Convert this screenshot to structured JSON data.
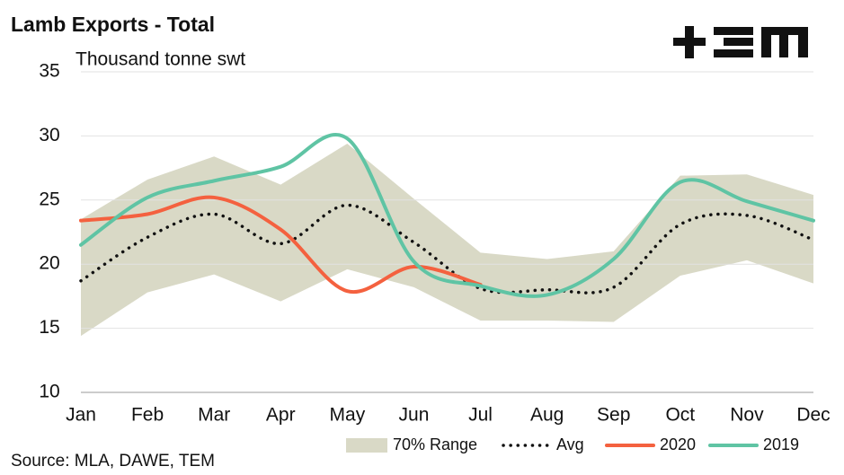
{
  "chart_data": {
    "type": "line",
    "title": "Lamb Exports - Total",
    "y_label": "Thousand tonne swt",
    "source": "Source: MLA, DAWE, TEM",
    "categories": [
      "Jan",
      "Feb",
      "Mar",
      "Apr",
      "May",
      "Jun",
      "Jul",
      "Aug",
      "Sep",
      "Oct",
      "Nov",
      "Dec"
    ],
    "ylim": [
      10,
      35
    ],
    "yticks": [
      10,
      15,
      20,
      25,
      30,
      35
    ],
    "grid": true,
    "range": {
      "name": "70% Range",
      "color": "#d9d9c6",
      "upper": [
        23.5,
        26.6,
        28.4,
        26.2,
        29.4,
        25.1,
        20.9,
        20.4,
        21.0,
        26.9,
        27.0,
        25.4
      ],
      "lower": [
        14.4,
        17.8,
        19.2,
        17.1,
        19.6,
        18.2,
        15.6,
        15.6,
        15.5,
        19.1,
        20.3,
        18.5
      ]
    },
    "series": [
      {
        "name": "Avg",
        "color": "#111111",
        "style": "dotted",
        "values": [
          18.7,
          22.1,
          23.9,
          21.6,
          24.6,
          21.7,
          18.1,
          18.0,
          18.2,
          23.1,
          23.8,
          21.9
        ]
      },
      {
        "name": "2020",
        "color": "#f4613f",
        "style": "solid",
        "values": [
          23.4,
          23.9,
          25.2,
          22.7,
          17.9,
          19.8,
          18.4,
          null,
          null,
          null,
          null,
          null
        ]
      },
      {
        "name": "2019",
        "color": "#5fc4a4",
        "style": "solid",
        "values": [
          21.5,
          25.2,
          26.5,
          27.6,
          29.8,
          20.2,
          18.3,
          17.6,
          20.4,
          26.4,
          24.9,
          23.4
        ]
      }
    ]
  }
}
